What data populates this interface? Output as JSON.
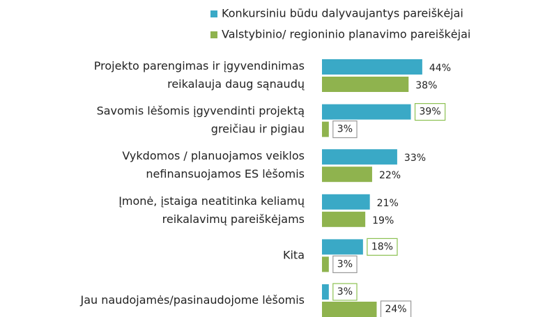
{
  "chart_data": {
    "type": "bar",
    "orientation": "horizontal",
    "categories": [
      [
        "Projekto parengimas ir įgyvendinimas",
        "reikalauja daug sąnaudų"
      ],
      [
        "Savomis lėšomis įgyvendinti projektą",
        "greičiau ir pigiau"
      ],
      [
        "Vykdomos / planuojamos veiklos",
        "nefinansuojamos ES lėšomis"
      ],
      [
        "Įmonė, įstaiga neatitinka keliamų",
        "reikalavimų pareiškėjams"
      ],
      [
        "Kita"
      ],
      [
        "Jau naudojamės/pasinaudojome lėšomis"
      ]
    ],
    "series": [
      {
        "name": "Konkursiniu būdu dalyvaujantys pareiškėjai",
        "color": "#3aa9c6",
        "values": [
          44,
          39,
          33,
          21,
          18,
          3
        ],
        "value_labels": [
          "44%",
          "39%",
          "33%",
          "21%",
          "18%",
          "3%"
        ],
        "boxed_labels": [
          false,
          true,
          false,
          false,
          true,
          true
        ],
        "box_color": "#8cc152"
      },
      {
        "name": "Valstybinio/ regioninio planavimo pareiškėjai",
        "color": "#8fb34e",
        "values": [
          38,
          3,
          22,
          19,
          3,
          24
        ],
        "value_labels": [
          "38%",
          "3%",
          "22%",
          "19%",
          "3%",
          "24%"
        ],
        "boxed_labels": [
          false,
          true,
          false,
          false,
          true,
          true
        ],
        "box_color": "#999999"
      }
    ]
  }
}
